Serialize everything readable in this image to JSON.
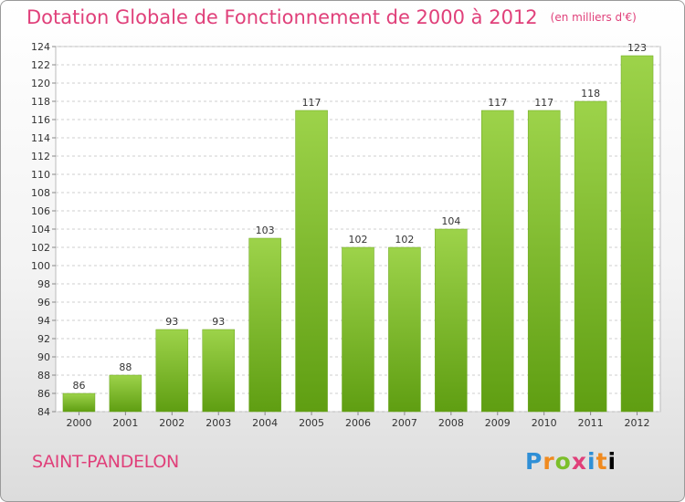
{
  "header": {
    "title": "Dotation Globale de Fonctionnement de 2000 à 2012",
    "subtitle": "(en milliers d'€)"
  },
  "footer": {
    "commune": "SAINT-PANDELON",
    "logo_letters": [
      "P",
      "r",
      "o",
      "x",
      "i",
      "t",
      "i"
    ]
  },
  "colors": {
    "title": "#e0407a",
    "bar_top": "#9dd34a",
    "bar_bottom": "#5f9e12",
    "grid": "#cfcfcf"
  },
  "chart_data": {
    "type": "bar",
    "title": "Dotation Globale de Fonctionnement de 2000 à 2012",
    "subtitle": "(en milliers d'€)",
    "xlabel": "",
    "ylabel": "",
    "ylim": [
      84,
      124
    ],
    "yticks": [
      84,
      86,
      88,
      90,
      92,
      94,
      96,
      98,
      100,
      102,
      104,
      106,
      108,
      110,
      112,
      114,
      116,
      118,
      120,
      122,
      124
    ],
    "grid": true,
    "categories": [
      "2000",
      "2001",
      "2002",
      "2003",
      "2004",
      "2005",
      "2006",
      "2007",
      "2008",
      "2009",
      "2010",
      "2011",
      "2012"
    ],
    "values": [
      86,
      88,
      93,
      93,
      103,
      117,
      102,
      102,
      104,
      117,
      117,
      118,
      123
    ]
  }
}
